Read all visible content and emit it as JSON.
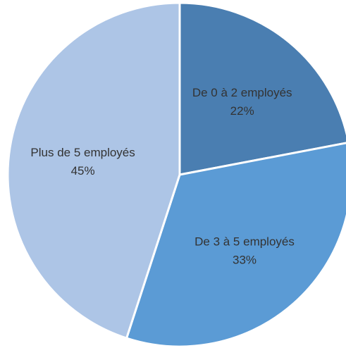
{
  "chart_data": {
    "type": "pie",
    "title": "",
    "slices": [
      {
        "label": "De 0 à 2 employés",
        "value": 22,
        "value_label": "22%",
        "color": "#4a7eb1"
      },
      {
        "label": "De 3 à 5 employés",
        "value": 33,
        "value_label": "33%",
        "color": "#5b9bd5"
      },
      {
        "label": "Plus de 5 employés",
        "value": 45,
        "value_label": "45%",
        "color": "#adc5e6"
      }
    ],
    "start_angle_deg": 0,
    "direction": "clockwise",
    "legend": "none",
    "slice_border_color": "#ffffff"
  }
}
